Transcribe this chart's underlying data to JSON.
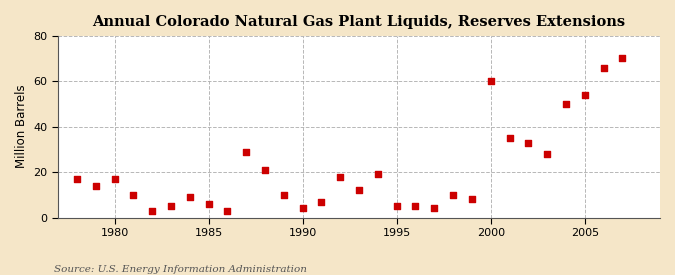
{
  "title": "Annual Colorado Natural Gas Plant Liquids, Reserves Extensions",
  "ylabel": "Million Barrels",
  "source": "Source: U.S. Energy Information Administration",
  "background_color": "#f5e6c8",
  "plot_background_color": "#ffffff",
  "marker_color": "#cc0000",
  "grid_color": "#b0b0b0",
  "years": [
    1978,
    1979,
    1980,
    1981,
    1982,
    1983,
    1984,
    1985,
    1986,
    1987,
    1988,
    1989,
    1990,
    1991,
    1992,
    1993,
    1994,
    1995,
    1996,
    1997,
    1998,
    1999,
    2000,
    2001,
    2002,
    2003,
    2004,
    2005,
    2006,
    2007
  ],
  "values": [
    17,
    14,
    17,
    10,
    3,
    5,
    9,
    6,
    3,
    29,
    21,
    10,
    4,
    7,
    18,
    12,
    19,
    5,
    5,
    4,
    10,
    8,
    60,
    35,
    33,
    28,
    50,
    54,
    66,
    70
  ],
  "xlim": [
    1977,
    2009
  ],
  "ylim": [
    0,
    80
  ],
  "yticks": [
    0,
    20,
    40,
    60,
    80
  ],
  "xticks": [
    1980,
    1985,
    1990,
    1995,
    2000,
    2005
  ],
  "title_fontsize": 10.5,
  "label_fontsize": 8.5,
  "tick_fontsize": 8,
  "source_fontsize": 7.5
}
